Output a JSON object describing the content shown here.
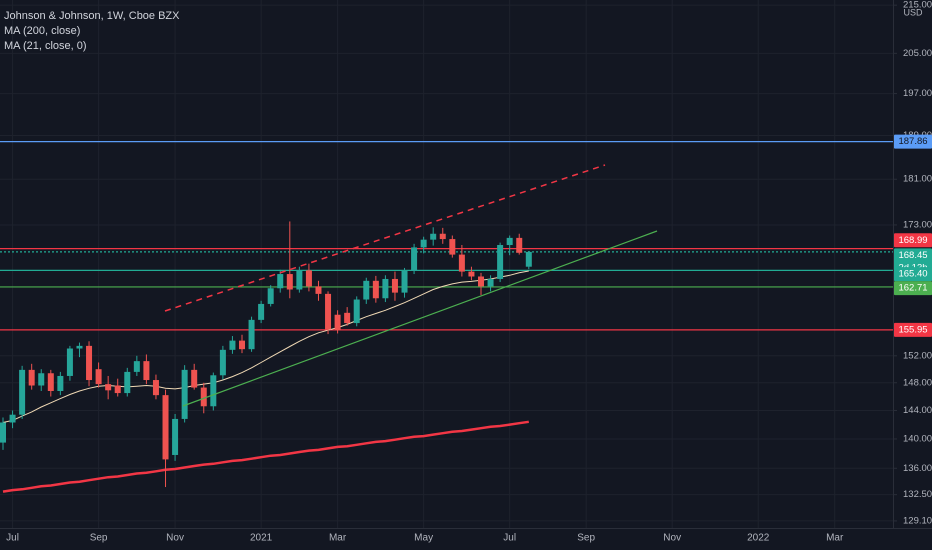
{
  "chart_data": {
    "type": "candlestick",
    "title": "Johnson & Johnson, 1W, Cboe BZX",
    "currency": "USD",
    "log_scale": true,
    "grid": true,
    "up_color": "#26a69a",
    "down_color": "#ef5350",
    "categories": [
      null,
      "Jul",
      null,
      null,
      null,
      null,
      null,
      null,
      null,
      null,
      "Sep",
      null,
      null,
      null,
      null,
      null,
      null,
      null,
      "Nov",
      null,
      null,
      null,
      null,
      null,
      null,
      null,
      null,
      "2021",
      null,
      null,
      null,
      null,
      null,
      null,
      null,
      "Mar",
      null,
      null,
      null,
      null,
      null,
      null,
      null,
      null,
      "May",
      null,
      null,
      null,
      null,
      null,
      null,
      null,
      null,
      "Jul",
      null,
      null,
      null,
      null,
      null,
      null,
      null,
      "Sep",
      null,
      null,
      null,
      null,
      null,
      null,
      null,
      null,
      "Nov",
      null,
      null,
      null,
      null,
      null,
      null,
      null,
      null,
      "2022",
      null,
      null,
      null,
      null,
      null,
      null,
      null,
      "Mar",
      null,
      null,
      null,
      null,
      null
    ],
    "open": [
      139.5,
      142.3,
      143.4,
      149.9,
      147.6,
      149.4,
      146.8,
      149.0,
      153.1,
      153.5,
      150.0,
      147.8,
      147.6,
      146.5,
      149.6,
      151.2,
      148.4,
      146.2,
      137.8,
      142.8,
      149.9,
      147.3,
      144.6,
      149.1,
      152.9,
      154.3,
      153.0,
      157.5,
      160.0,
      162.5,
      164.8,
      162.3,
      165.4,
      162.8,
      161.6,
      158.3,
      158.6,
      157.0,
      160.7,
      163.7,
      160.9,
      164.0,
      161.8,
      165.3,
      169.2,
      170.5,
      171.5,
      170.6,
      168.0,
      165.2,
      164.4,
      162.8,
      164.0,
      169.6,
      170.8,
      166.0,
      null,
      null,
      null,
      null,
      null,
      null,
      null,
      null,
      null,
      null,
      null,
      null,
      null,
      null,
      null,
      null,
      null,
      null,
      null,
      null,
      null,
      null,
      null,
      null,
      null,
      null,
      null,
      null,
      null,
      null,
      null,
      null,
      null,
      null,
      null,
      null,
      null
    ],
    "high": [
      143.0,
      144.0,
      150.5,
      150.8,
      150.0,
      149.9,
      149.6,
      153.5,
      154.0,
      154.2,
      151.0,
      149.0,
      148.6,
      150.2,
      152.0,
      152.2,
      149.2,
      147.0,
      143.5,
      150.6,
      150.8,
      148.0,
      149.5,
      153.5,
      155.0,
      155.2,
      158.0,
      160.5,
      163.0,
      165.5,
      173.6,
      166.0,
      166.5,
      163.7,
      162.0,
      159.0,
      159.5,
      161.2,
      164.2,
      164.5,
      164.6,
      165.2,
      165.8,
      169.8,
      171.0,
      172.6,
      172.5,
      171.2,
      169.6,
      166.0,
      165.0,
      164.6,
      170.0,
      171.2,
      171.5,
      168.6,
      null,
      null,
      null,
      null,
      null,
      null,
      null,
      null,
      null,
      null,
      null,
      null,
      null,
      null,
      null,
      null,
      null,
      null,
      null,
      null,
      null,
      null,
      null,
      null,
      null,
      null,
      null,
      null,
      null,
      null,
      null,
      null,
      null,
      null,
      null,
      null,
      null
    ],
    "low": [
      138.5,
      141.5,
      142.8,
      147.0,
      146.8,
      146.0,
      146.2,
      148.3,
      151.8,
      147.5,
      147.3,
      145.6,
      146.0,
      146.0,
      149.0,
      147.8,
      145.6,
      133.5,
      137.0,
      142.3,
      147.0,
      143.6,
      144.0,
      148.5,
      152.3,
      152.4,
      152.6,
      157.0,
      159.6,
      161.8,
      160.9,
      161.8,
      162.0,
      160.5,
      155.3,
      155.4,
      156.6,
      156.5,
      160.0,
      160.2,
      160.3,
      160.5,
      161.0,
      164.8,
      168.2,
      169.5,
      169.8,
      167.5,
      164.4,
      163.8,
      161.4,
      162.0,
      163.5,
      167.9,
      168.0,
      165.6,
      null,
      null,
      null,
      null,
      null,
      null,
      null,
      null,
      null,
      null,
      null,
      null,
      null,
      null,
      null,
      null,
      null,
      null,
      null,
      null,
      null,
      null,
      null,
      null,
      null,
      null,
      null,
      null,
      null,
      null,
      null,
      null,
      null,
      null,
      null,
      null,
      null
    ],
    "close": [
      142.3,
      143.4,
      149.9,
      147.6,
      149.4,
      146.8,
      149.0,
      153.1,
      153.5,
      148.4,
      147.8,
      146.9,
      146.5,
      149.6,
      151.2,
      148.4,
      146.2,
      137.2,
      142.8,
      149.9,
      147.3,
      144.6,
      149.1,
      152.9,
      154.3,
      153.0,
      157.5,
      160.0,
      162.5,
      164.8,
      162.3,
      165.4,
      162.8,
      161.6,
      156.0,
      155.9,
      157.0,
      160.7,
      163.7,
      160.9,
      164.0,
      161.8,
      165.3,
      169.2,
      170.5,
      171.5,
      170.6,
      168.0,
      165.2,
      164.4,
      162.8,
      164.0,
      169.6,
      170.8,
      168.3,
      168.45,
      null,
      null,
      null,
      null,
      null,
      null,
      null,
      null,
      null,
      null,
      null,
      null,
      null,
      null,
      null,
      null,
      null,
      null,
      null,
      null,
      null,
      null,
      null,
      null,
      null,
      null,
      null,
      null,
      null,
      null,
      null,
      null,
      null,
      null,
      null,
      null,
      null
    ],
    "series": [
      {
        "name": "MA (200, close)",
        "color": "#f23645",
        "width": 2.5,
        "values": [
          132.9,
          133.1,
          133.2,
          133.4,
          133.6,
          133.7,
          133.9,
          134.1,
          134.2,
          134.4,
          134.6,
          134.8,
          134.9,
          135.1,
          135.3,
          135.4,
          135.6,
          135.8,
          135.9,
          136.1,
          136.3,
          136.5,
          136.6,
          136.8,
          137.0,
          137.1,
          137.3,
          137.5,
          137.7,
          137.8,
          138.0,
          138.2,
          138.4,
          138.5,
          138.7,
          138.9,
          139.0,
          139.2,
          139.4,
          139.6,
          139.7,
          139.9,
          140.1,
          140.3,
          140.4,
          140.6,
          140.8,
          141.0,
          141.1,
          141.3,
          141.5,
          141.7,
          141.8,
          142.0,
          142.2,
          142.4,
          null,
          null,
          null,
          null,
          null,
          null,
          null,
          null,
          null,
          null,
          null,
          null,
          null,
          null,
          null,
          null,
          null,
          null,
          null,
          null,
          null,
          null,
          null,
          null,
          null,
          null,
          null,
          null,
          null,
          null,
          null,
          null,
          null,
          null,
          null,
          null,
          null
        ]
      },
      {
        "name": "MA (21, close, 0)",
        "color": "#f0d9b5",
        "width": 1,
        "values": [
          142.3,
          142.6,
          143.2,
          143.8,
          144.5,
          145.1,
          145.7,
          146.3,
          146.8,
          147.2,
          147.5,
          147.6,
          147.5,
          147.4,
          147.5,
          147.6,
          147.5,
          147.2,
          147.1,
          147.3,
          147.6,
          147.8,
          148.0,
          148.4,
          148.9,
          149.5,
          150.2,
          151.0,
          151.8,
          152.6,
          153.4,
          154.2,
          154.9,
          155.5,
          155.9,
          156.3,
          156.8,
          157.4,
          158.0,
          158.5,
          159.0,
          159.6,
          160.2,
          160.9,
          161.6,
          162.3,
          162.8,
          163.2,
          163.5,
          163.6,
          163.8,
          164.0,
          164.3,
          164.6,
          165.0,
          165.3,
          null,
          null,
          null,
          null,
          null,
          null,
          null,
          null,
          null,
          null,
          null,
          null,
          null,
          null,
          null,
          null,
          null,
          null,
          null,
          null,
          null,
          null,
          null,
          null,
          null,
          null,
          null,
          null,
          null,
          null,
          null,
          null,
          null,
          null,
          null,
          null,
          null
        ]
      }
    ],
    "ylim": [
      128.2,
      216.1
    ],
    "yticks": [
      {
        "value": 129.1,
        "label": "129.10"
      },
      {
        "value": 132.5,
        "label": "132.50"
      },
      {
        "value": 136,
        "label": "136.00"
      },
      {
        "value": 140,
        "label": "140.00"
      },
      {
        "value": 144,
        "label": "144.00"
      },
      {
        "value": 148,
        "label": "148.00"
      },
      {
        "value": 152,
        "label": "152.00"
      },
      {
        "value": 173,
        "label": "173.00"
      },
      {
        "value": 181,
        "label": "181.00"
      },
      {
        "value": 189,
        "label": "189.00"
      },
      {
        "value": 197,
        "label": "197.00"
      },
      {
        "value": 205,
        "label": "205.00"
      },
      {
        "value": 215,
        "label": "215.00"
      }
    ],
    "price_lines": [
      {
        "value": 187.86,
        "label": "187.86",
        "color": "#5b9cf6"
      },
      {
        "value": 168.99,
        "label": "168.99",
        "color": "#f23645"
      },
      {
        "value": 168.45,
        "label": "168.45",
        "color": "#22ab94",
        "countdown": "2d 13h"
      },
      {
        "value": 165.4,
        "label": "165.40",
        "color": "#22ab94"
      },
      {
        "value": 162.71,
        "label": "162.71",
        "color": "#4caf50"
      },
      {
        "value": 155.95,
        "label": "155.95",
        "color": "#f23645"
      }
    ]
  }
}
